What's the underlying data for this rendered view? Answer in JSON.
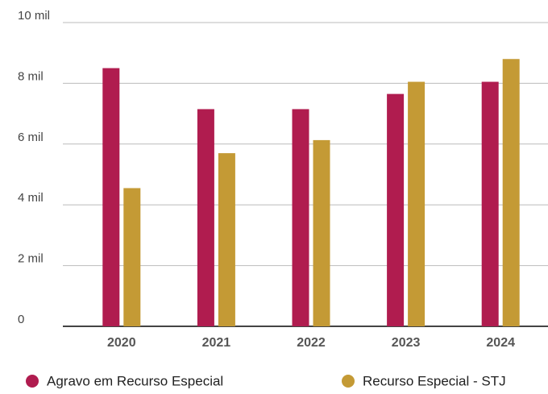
{
  "chart_data": {
    "type": "bar",
    "categories": [
      "2020",
      "2021",
      "2022",
      "2023",
      "2024"
    ],
    "series": [
      {
        "name": "Agravo em Recurso Especial",
        "color": "#b01c4f",
        "values": [
          8500,
          7150,
          7150,
          7650,
          8050
        ]
      },
      {
        "name": "Recurso Especial - STJ",
        "color": "#c49a35",
        "values": [
          4550,
          5700,
          6130,
          8050,
          8800
        ]
      }
    ],
    "ylim": [
      0,
      10000
    ],
    "yticks": [
      0,
      {
        "value": 2000,
        "label": "2 mil"
      },
      {
        "value": 4000,
        "label": "4 mil"
      },
      {
        "value": 6000,
        "label": "6 mil"
      },
      {
        "value": 8000,
        "label": "8 mil"
      },
      {
        "value": 10000,
        "label": "10 mil"
      }
    ],
    "grid": true
  }
}
